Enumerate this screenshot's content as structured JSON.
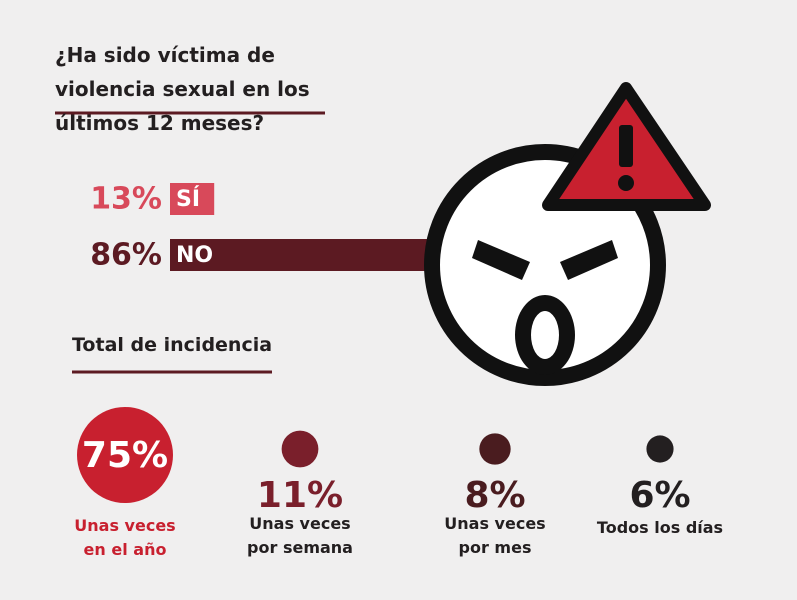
{
  "chart_data": [
    {
      "type": "bar",
      "title": "¿Ha sido víctima de violencia sexual en los últimos 12 meses?",
      "categories": [
        "SÍ",
        "NO"
      ],
      "values": [
        13,
        86
      ],
      "value_labels": [
        "13%",
        "86%"
      ],
      "colors": [
        "#d8495a",
        "#5c1a22"
      ]
    },
    {
      "type": "bubble",
      "title": "Total de incidencia",
      "categories": [
        "Unas veces en el año",
        "Unas veces por semana",
        "Unas veces por mes",
        "Todos los días"
      ],
      "values": [
        75,
        11,
        8,
        6
      ],
      "value_labels": [
        "75%",
        "11%",
        "8%",
        "6%"
      ],
      "colors": [
        "#c8202f",
        "#7a1f2b",
        "#4a1c1f",
        "#231f20"
      ]
    }
  ]
}
